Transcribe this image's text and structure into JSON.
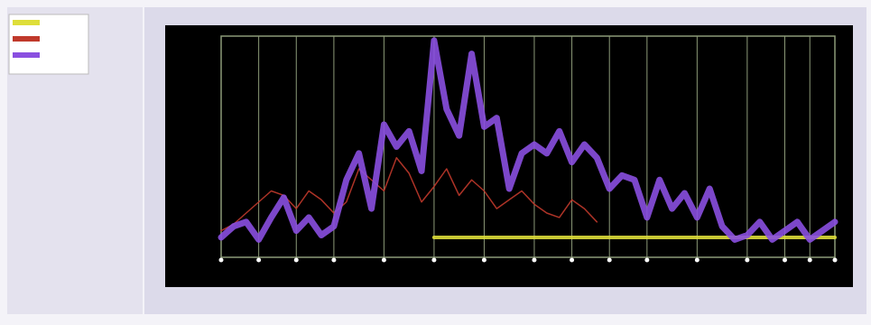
{
  "chart_data": {
    "type": "line",
    "xlim": [
      0,
      49
    ],
    "ylim": [
      0,
      100
    ],
    "xticks": [
      0,
      3,
      6,
      9,
      13,
      17,
      21,
      25,
      28,
      31,
      34,
      38,
      42,
      45,
      47,
      49
    ],
    "grid": true,
    "series": [
      {
        "color": "#dede3a",
        "width": 4,
        "values": [
          null,
          null,
          null,
          null,
          null,
          null,
          null,
          null,
          null,
          null,
          null,
          null,
          null,
          null,
          null,
          null,
          null,
          9,
          9,
          9,
          9,
          9,
          9,
          9,
          9,
          9,
          9,
          9,
          9,
          9,
          9,
          9,
          9,
          9,
          9,
          9,
          9,
          9,
          9,
          9,
          9,
          9,
          9,
          9,
          9,
          9,
          9,
          9,
          9,
          9
        ]
      },
      {
        "color": "#c0392b",
        "width": 1.5,
        "values": [
          12,
          15,
          20,
          25,
          30,
          28,
          22,
          30,
          26,
          20,
          25,
          40,
          35,
          30,
          45,
          38,
          25,
          32,
          40,
          28,
          35,
          30,
          22,
          26,
          30,
          24,
          20,
          18,
          26,
          22,
          16,
          null,
          null,
          null,
          null,
          null,
          null,
          null,
          null,
          null,
          null,
          null,
          null,
          null,
          null,
          null,
          null,
          null,
          null,
          null
        ]
      },
      {
        "color": "#8a4fe0",
        "width": 7,
        "values": [
          9,
          14,
          16,
          8,
          18,
          27,
          12,
          18,
          10,
          14,
          35,
          47,
          22,
          60,
          50,
          57,
          39,
          98,
          67,
          55,
          92,
          59,
          63,
          31,
          47,
          51,
          47,
          57,
          43,
          51,
          45,
          31,
          37,
          35,
          18,
          35,
          22,
          29,
          18,
          31,
          14,
          8,
          10,
          16,
          8,
          12,
          16,
          8,
          12,
          16
        ]
      }
    ]
  }
}
